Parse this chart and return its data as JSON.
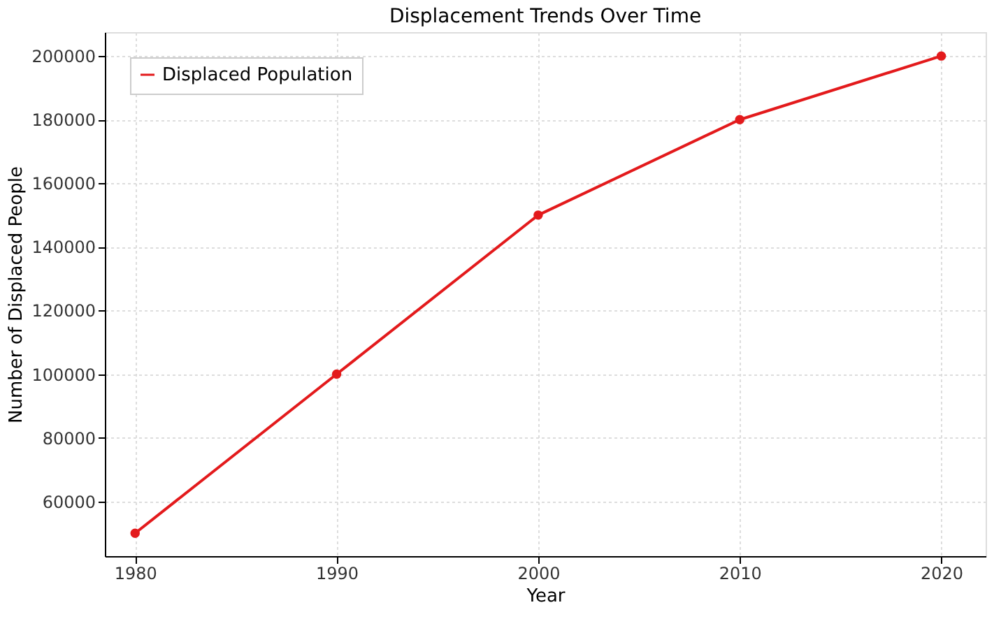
{
  "chart_data": {
    "type": "line",
    "title": "Displacement Trends Over Time",
    "xlabel": "Year",
    "ylabel": "Number of Displaced People",
    "x": [
      1980,
      1990,
      2000,
      2010,
      2020
    ],
    "series": [
      {
        "name": "Displaced Population",
        "color": "#e31a1c",
        "values": [
          50000,
          100000,
          150000,
          180000,
          200000
        ]
      }
    ],
    "xlim": [
      1978.5,
      2022.2
    ],
    "xticks": [
      1980,
      1990,
      2000,
      2010,
      2020
    ],
    "ylim": [
      42800,
      207500
    ],
    "yticks": [
      60000,
      80000,
      100000,
      120000,
      140000,
      160000,
      180000,
      200000
    ],
    "grid": true,
    "legend": "top left",
    "marker": "circle",
    "line_style": "solid"
  }
}
